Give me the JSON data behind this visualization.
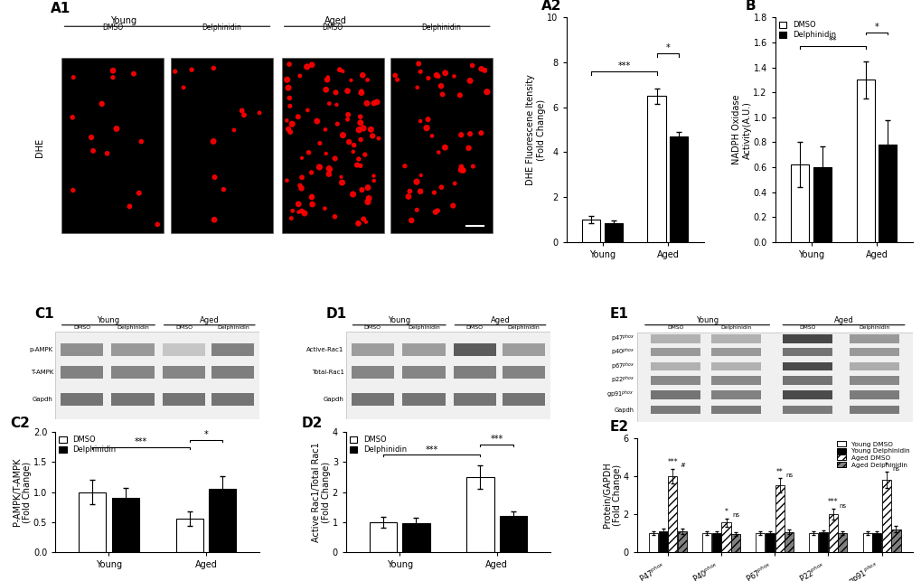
{
  "A2": {
    "ylabel": "DHE Fluorescene Itensity\n(Fold Change)",
    "xlabel_groups": [
      "Young",
      "Aged"
    ],
    "bar_values": [
      1.0,
      0.85,
      6.5,
      4.7
    ],
    "bar_errors": [
      0.15,
      0.12,
      0.35,
      0.22
    ],
    "ylim": [
      0,
      10
    ],
    "yticks": [
      0,
      2,
      4,
      6,
      8,
      10
    ],
    "sig1": "***",
    "sig2": "*"
  },
  "B": {
    "ylabel": "NADPH Oxidase\nActivity(A.U.)",
    "xlabel_groups": [
      "Young",
      "Aged"
    ],
    "bar_values": [
      0.62,
      0.6,
      1.3,
      0.78
    ],
    "bar_errors": [
      0.18,
      0.17,
      0.15,
      0.2
    ],
    "ylim": [
      0,
      1.8
    ],
    "yticks": [
      0.0,
      0.2,
      0.4,
      0.6,
      0.8,
      1.0,
      1.2,
      1.4,
      1.6,
      1.8
    ],
    "sig1": "**",
    "sig2": "*"
  },
  "C2": {
    "ylabel": "P-AMPK/T-AMPK\n(Fold Change)",
    "xlabel_groups": [
      "Young",
      "Aged"
    ],
    "bar_values": [
      1.0,
      0.9,
      0.55,
      1.05
    ],
    "bar_errors": [
      0.2,
      0.17,
      0.12,
      0.22
    ],
    "ylim": [
      0,
      2.0
    ],
    "yticks": [
      0.0,
      0.5,
      1.0,
      1.5,
      2.0
    ],
    "sig1": "***",
    "sig2": "*"
  },
  "D2": {
    "ylabel": "Active Rac1/Total Rac1\n(Fold Change)",
    "xlabel_groups": [
      "Young",
      "Aged"
    ],
    "bar_values": [
      1.0,
      0.95,
      2.5,
      1.2
    ],
    "bar_errors": [
      0.18,
      0.2,
      0.38,
      0.15
    ],
    "ylim": [
      0,
      4
    ],
    "yticks": [
      0,
      1,
      2,
      3,
      4
    ],
    "sig1": "***",
    "sig2": "***"
  },
  "E2": {
    "ylabel": "Protein/GAPDH\n(Fold Change)",
    "categories": [
      "P47phox",
      "P40phox",
      "P67phox",
      "P22phox",
      "gp91phox"
    ],
    "bar_values": [
      [
        1.0,
        1.1,
        4.0,
        1.1
      ],
      [
        1.0,
        1.0,
        1.55,
        0.95
      ],
      [
        1.0,
        1.0,
        3.5,
        1.05
      ],
      [
        1.0,
        1.05,
        2.0,
        1.0
      ],
      [
        1.0,
        1.0,
        3.8,
        1.2
      ]
    ],
    "bar_errors": [
      [
        0.08,
        0.12,
        0.38,
        0.14
      ],
      [
        0.08,
        0.1,
        0.22,
        0.1
      ],
      [
        0.08,
        0.1,
        0.38,
        0.12
      ],
      [
        0.08,
        0.1,
        0.28,
        0.1
      ],
      [
        0.08,
        0.1,
        0.42,
        0.16
      ]
    ],
    "ylim": [
      0,
      6
    ],
    "yticks": [
      0,
      2,
      4,
      6
    ],
    "legend_labels": [
      "Young DMSO",
      "Young Delphinidin",
      "Aged DMSO",
      "Aged Delphinidin"
    ],
    "sig_top": [
      "***",
      "*",
      "**",
      "***",
      "*"
    ],
    "sig_bot": [
      "#",
      "ns",
      "ns",
      "ns",
      "ns"
    ]
  },
  "panel_label_fontsize": 11,
  "axis_label_fontsize": 7,
  "tick_fontsize": 7,
  "background_color": "white"
}
